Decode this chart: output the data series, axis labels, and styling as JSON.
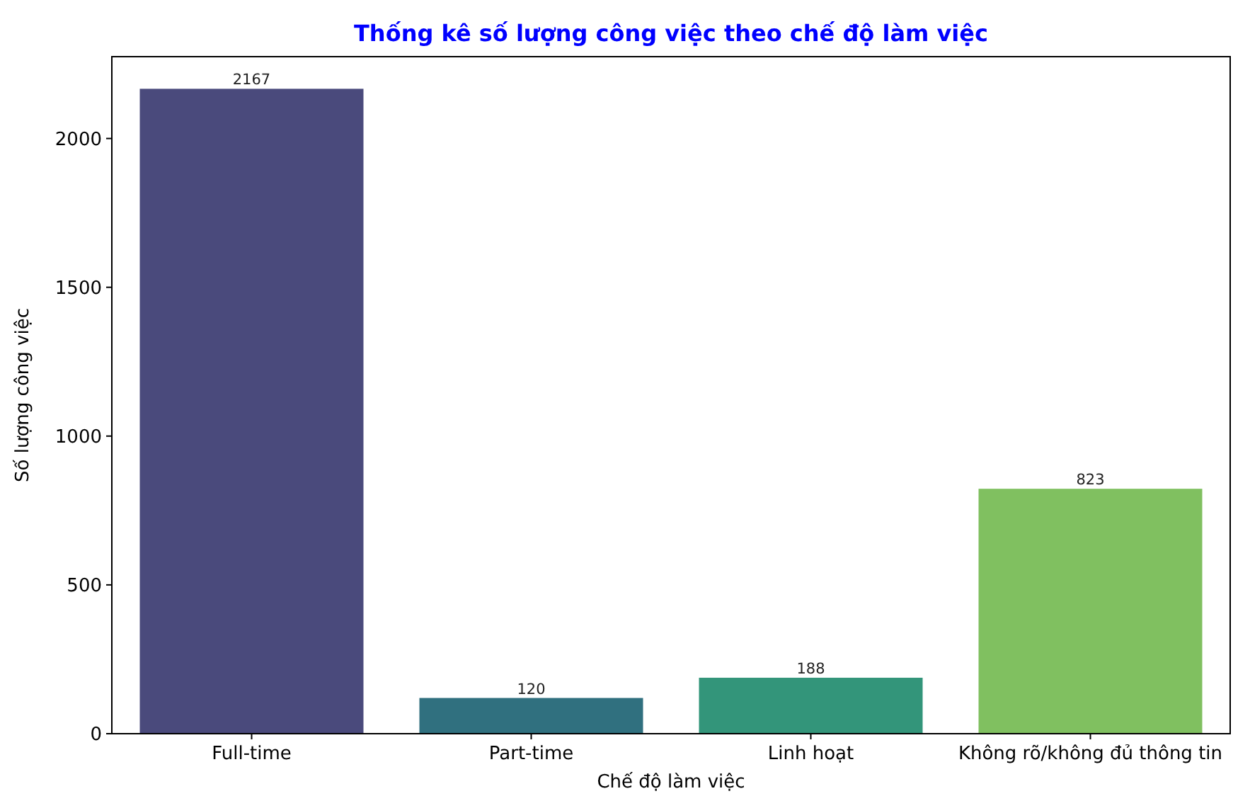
{
  "chart_data": {
    "type": "bar",
    "title": "Thống kê số lượng công việc theo chế độ làm việc",
    "xlabel": "Chế độ làm việc",
    "ylabel": "Số lượng công việc",
    "categories": [
      "Full-time",
      "Part-time",
      "Linh hoạt",
      "Không rõ/không đủ thông tin"
    ],
    "values": [
      2167,
      120,
      188,
      823
    ],
    "colors": [
      "#4a4a7c",
      "#30707f",
      "#33957a",
      "#80c060"
    ],
    "ylim": [
      0,
      2275
    ],
    "yticks": [
      0,
      500,
      1000,
      1500,
      2000
    ],
    "data_labels": true,
    "grid": false
  }
}
